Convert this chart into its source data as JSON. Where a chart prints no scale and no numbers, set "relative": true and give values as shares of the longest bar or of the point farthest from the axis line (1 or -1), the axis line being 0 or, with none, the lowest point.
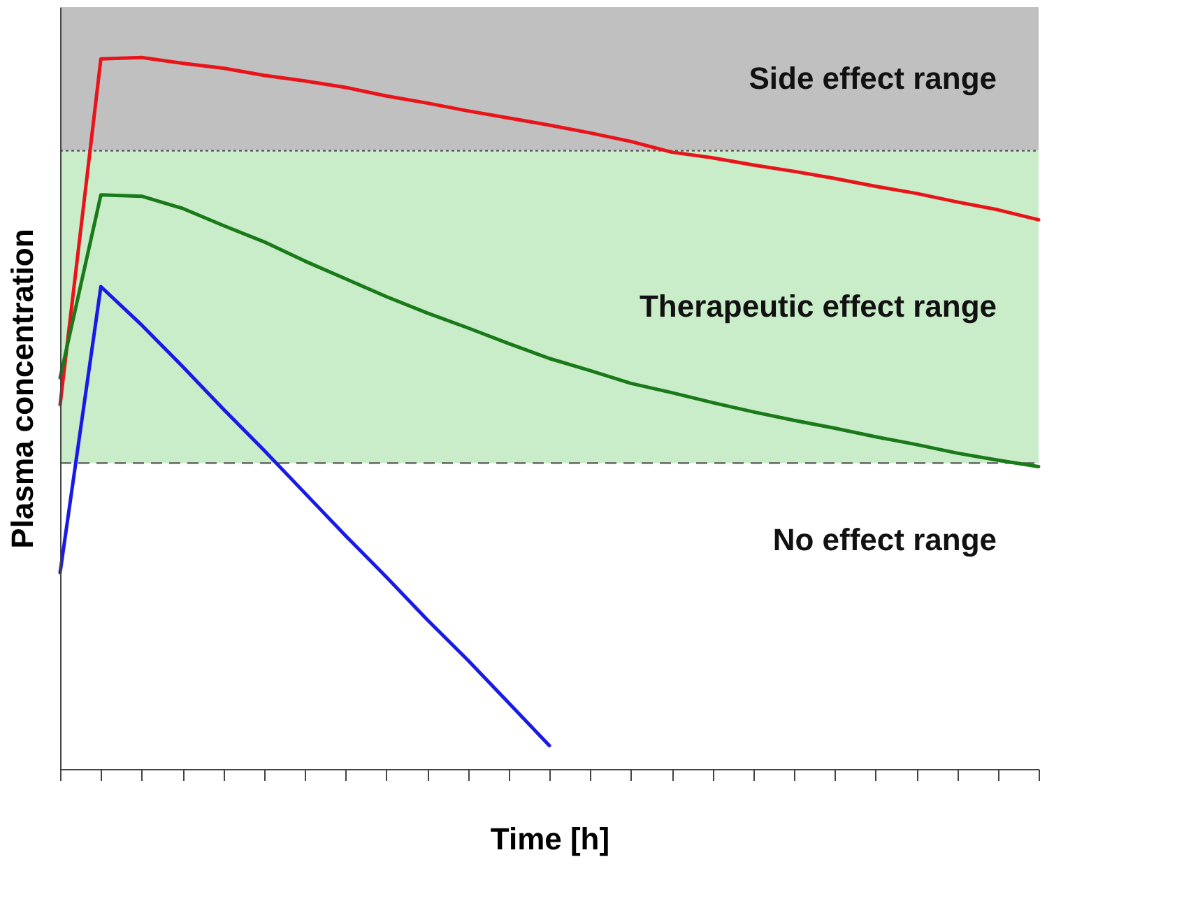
{
  "chart_data": {
    "type": "line",
    "relative": true,
    "xlabel": "Time [h]",
    "ylabel": "Plasma concentration",
    "categories": [
      null,
      null,
      null,
      null,
      null,
      null,
      null,
      null,
      null,
      null,
      null,
      null,
      null,
      null,
      null,
      null,
      null,
      null,
      null,
      null,
      null,
      null,
      null,
      null,
      null
    ],
    "line_style": "solid",
    "series": [
      {
        "color": "#e8141a",
        "values": [
          0.512,
          0.998,
          1,
          0.992,
          0.985,
          0.975,
          0.967,
          0.958,
          0.946,
          0.936,
          0.925,
          0.915,
          0.905,
          0.894,
          0.882,
          0.867,
          0.859,
          0.849,
          0.84,
          0.83,
          0.819,
          0.809,
          0.797,
          0.786,
          0.772
        ]
      },
      {
        "color": "#1a7a1a",
        "values": [
          0.55,
          0.807,
          0.805,
          0.788,
          0.764,
          0.741,
          0.714,
          0.689,
          0.664,
          0.641,
          0.62,
          0.598,
          0.577,
          0.56,
          0.542,
          0.529,
          0.515,
          0.502,
          0.49,
          0.479,
          0.467,
          0.456,
          0.444,
          0.434,
          0.425
        ]
      },
      {
        "color": "#1a1ae6",
        "values": [
          0.276,
          0.678,
          0.624,
          0.566,
          0.506,
          0.448,
          0.388,
          0.328,
          0.27,
          0.21,
          0.153,
          0.093,
          0.033,
          null,
          null,
          null,
          null,
          null,
          null,
          null,
          null,
          null,
          null,
          null,
          null
        ]
      }
    ],
    "bands": [
      {
        "axis": "y",
        "from": 0.869,
        "to": 1.071,
        "label": "Side effect range",
        "color": "#c0c0c0"
      },
      {
        "axis": "y",
        "from": 0.43,
        "to": 0.869,
        "label": "Therapeutic effect range",
        "color": "#c9ecc9"
      }
    ],
    "annotations": [
      "No effect range"
    ],
    "ref_lines": [
      {
        "axis": "y",
        "value": 0.869,
        "color": "#555555",
        "line_style": "dotted"
      },
      {
        "axis": "y",
        "value": 0.43,
        "color": "#555555",
        "line_style": "dashed"
      }
    ]
  }
}
